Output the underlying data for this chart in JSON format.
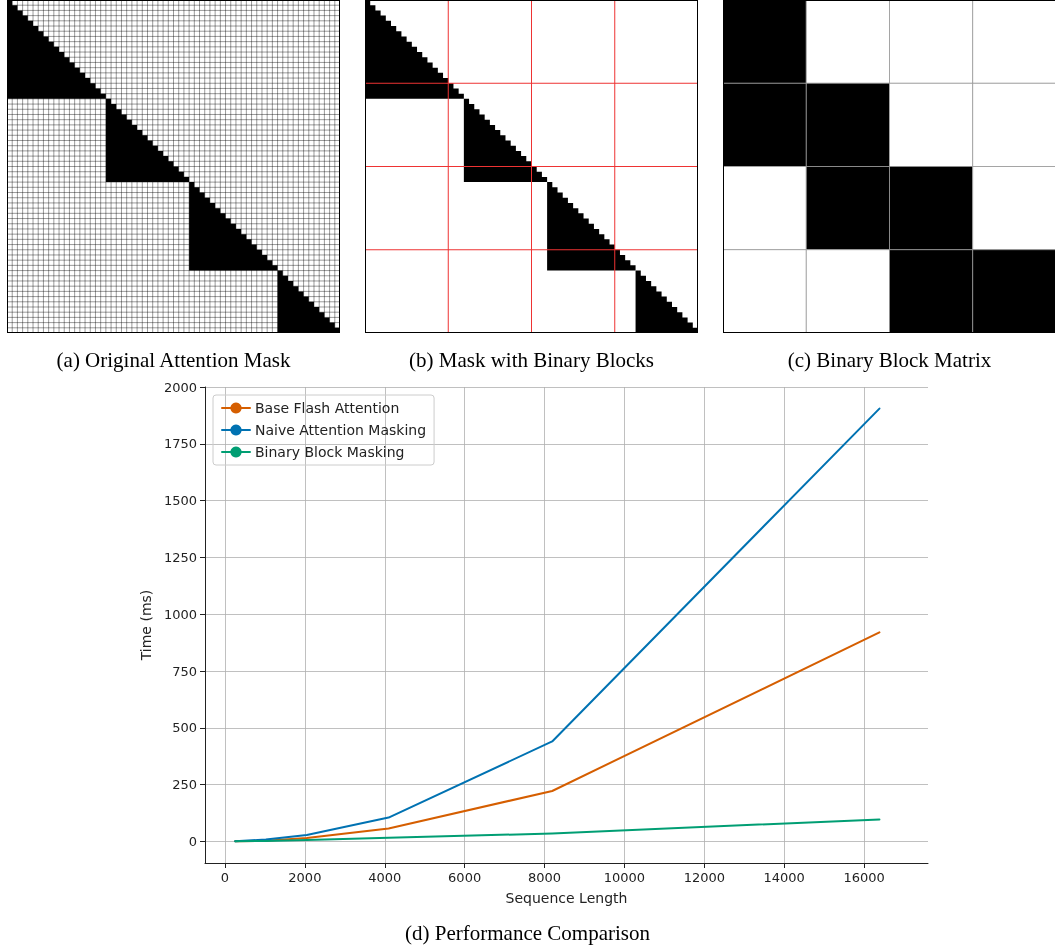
{
  "chart_data": [
    {
      "type": "other",
      "title": "(a) Original Attention Mask"
    },
    {
      "type": "other",
      "title": "(b) Mask with Binary Blocks"
    },
    {
      "type": "other",
      "title": "(c) Binary Block Matrix"
    },
    {
      "type": "line",
      "title": "(d) Performance Comparison",
      "xlabel": "Sequence Length",
      "ylabel": "Time (ms)",
      "x": [
        256,
        1024,
        2048,
        4096,
        8192,
        16384
      ],
      "series": [
        {
          "name": "Base Flash Attention",
          "color": "#d55e00",
          "values": [
            1,
            3,
            15,
            57,
            222,
            920
          ]
        },
        {
          "name": "Naive Attention Masking",
          "color": "#0072b2",
          "values": [
            1,
            8,
            28,
            105,
            440,
            1905
          ]
        },
        {
          "name": "Binary Block Masking",
          "color": "#009e73",
          "values": [
            1,
            2,
            6,
            16,
            35,
            97
          ]
        }
      ],
      "xlim": [
        -500,
        17600
      ],
      "xticks": [
        0,
        2000,
        4000,
        6000,
        8000,
        10000,
        12000,
        14000,
        16000
      ],
      "ylim": [
        -95,
        2000
      ],
      "yticks": [
        0,
        250,
        500,
        750,
        1000,
        1250,
        1500,
        1750,
        2000
      ],
      "grid": true,
      "legend": "top left",
      "marker": "none",
      "line_style": "solid"
    }
  ]
}
